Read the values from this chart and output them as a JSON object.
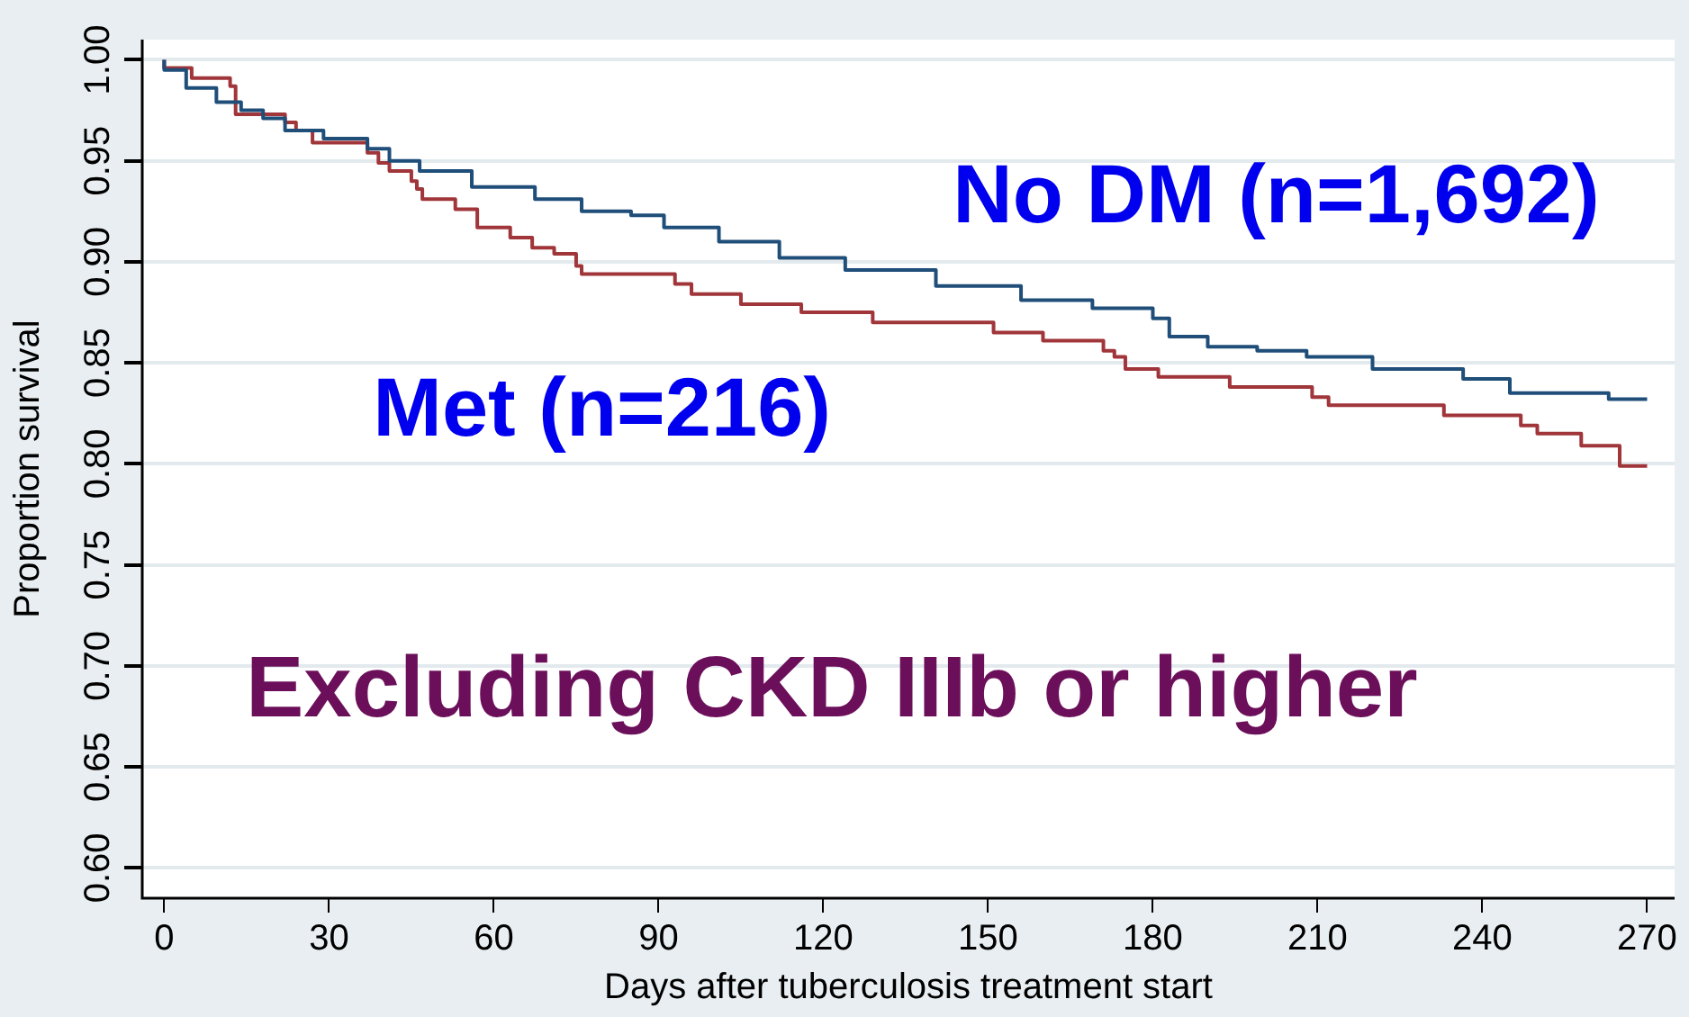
{
  "chart_data": {
    "type": "step",
    "xlabel": "Days after tuberculosis treatment start",
    "ylabel": "Proportion survival",
    "xlim": [
      -4,
      275
    ],
    "xticks": [
      0,
      30,
      60,
      90,
      120,
      150,
      180,
      210,
      240,
      270
    ],
    "ylim": [
      0.585,
      1.01
    ],
    "yticks": [
      {
        "value": 0.6,
        "label": "0.60"
      },
      {
        "value": 0.65,
        "label": "0.65"
      },
      {
        "value": 0.7,
        "label": "0.70"
      },
      {
        "value": 0.75,
        "label": "0.75"
      },
      {
        "value": 0.8,
        "label": "0.80"
      },
      {
        "value": 0.85,
        "label": "0.85"
      },
      {
        "value": 0.9,
        "label": "0.90"
      },
      {
        "value": 0.95,
        "label": "0.95"
      },
      {
        "value": 1,
        "label": "1.00"
      }
    ],
    "grid": "y",
    "legend": false,
    "marker": "none",
    "line_style": "solid",
    "annotations": [
      "Excluding CKD IIIb or higher"
    ],
    "series": [
      {
        "name": "No DM (n=1,692)",
        "color": "#1f4e79",
        "x": [
          0,
          4,
          9.5,
          14,
          18,
          22,
          29,
          37,
          41,
          46.5,
          56,
          67.5,
          76,
          85,
          91,
          101,
          112,
          124,
          140.5,
          156,
          169,
          180,
          183,
          190,
          199,
          208,
          220,
          236.5,
          245,
          263,
          270
        ],
        "values": [
          1.0,
          0.995,
          0.986,
          0.979,
          0.975,
          0.971,
          0.965,
          0.961,
          0.956,
          0.95,
          0.945,
          0.937,
          0.931,
          0.925,
          0.923,
          0.917,
          0.91,
          0.902,
          0.896,
          0.888,
          0.881,
          0.877,
          0.872,
          0.863,
          0.858,
          0.856,
          0.853,
          0.847,
          0.842,
          0.835,
          0.832
        ]
      },
      {
        "name": "Met (n=216)",
        "color": "#a0353a",
        "x": [
          0,
          5,
          12,
          13,
          22,
          24,
          27,
          37,
          39,
          41,
          45,
          46,
          47,
          53,
          57,
          63,
          67,
          71,
          75,
          76,
          93,
          96,
          105,
          116,
          129,
          151,
          160,
          171,
          173,
          175,
          181,
          194,
          209,
          212,
          233,
          247,
          250,
          258,
          265,
          267,
          270
        ],
        "values": [
          1.0,
          0.996,
          0.991,
          0.987,
          0.973,
          0.969,
          0.965,
          0.959,
          0.954,
          0.949,
          0.945,
          0.94,
          0.936,
          0.931,
          0.926,
          0.917,
          0.912,
          0.907,
          0.904,
          0.898,
          0.894,
          0.889,
          0.884,
          0.879,
          0.875,
          0.87,
          0.865,
          0.861,
          0.856,
          0.853,
          0.847,
          0.843,
          0.838,
          0.833,
          0.829,
          0.824,
          0.819,
          0.815,
          0.809,
          0.799,
          0.799
        ]
      }
    ]
  }
}
